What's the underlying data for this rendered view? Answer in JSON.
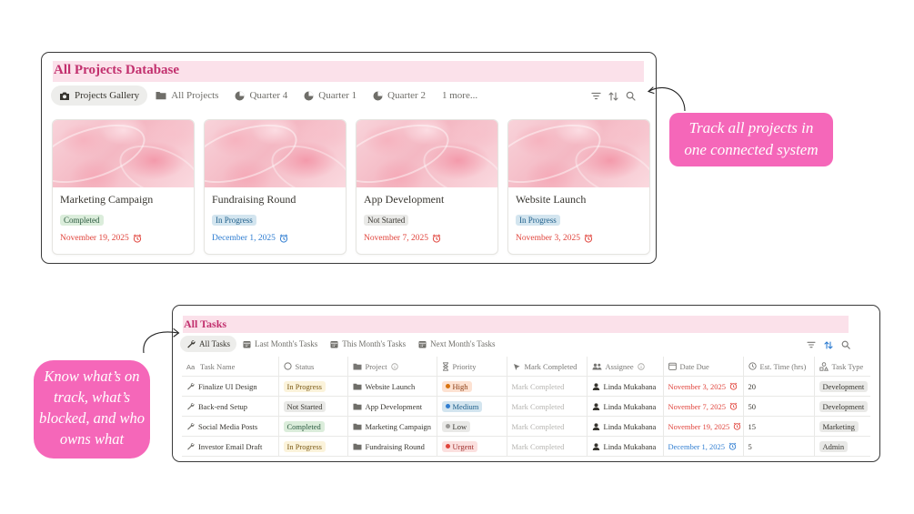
{
  "colors": {
    "brand_pink": "#c2306e",
    "title_bg": "#fbe1ea",
    "callout_bg": "#f567b9",
    "date_red": "#e0433b",
    "date_blue": "#2f7dd1",
    "status_completed_bg": "#dbeddb",
    "status_inprogress_bg": "#d3e5ef",
    "status_notstarted_bg": "#e9e9e7",
    "status_yellow_bg": "#fbf3db"
  },
  "projects": {
    "title": "All Projects Database",
    "tabs": [
      {
        "label": "Projects Gallery",
        "icon": "camera-icon"
      },
      {
        "label": "All Projects",
        "icon": "folder-icon"
      },
      {
        "label": "Quarter 4",
        "icon": "pie-chart-icon"
      },
      {
        "label": "Quarter 1",
        "icon": "pie-chart-icon"
      },
      {
        "label": "Quarter 2",
        "icon": "pie-chart-icon"
      },
      {
        "label": "1 more...",
        "icon": ""
      }
    ],
    "tools": [
      "filter-icon",
      "sort-icon",
      "search-icon"
    ],
    "cards": [
      {
        "title": "Marketing Campaign",
        "status": "Completed",
        "date": "November 19, 2025"
      },
      {
        "title": "Fundraising Round",
        "status": "In Progress",
        "date": "December 1, 2025"
      },
      {
        "title": "App Development",
        "status": "Not Started",
        "date": "November 7, 2025"
      },
      {
        "title": "Website Launch",
        "status": "In Progress",
        "date": "November 3, 2025"
      }
    ]
  },
  "callouts": {
    "projects": [
      "Track all projects in",
      "one connected system"
    ],
    "tasks": [
      "Know what’s on",
      "track, what’s",
      "blocked, and who",
      "owns what"
    ]
  },
  "tasks": {
    "title": "All Tasks",
    "tabs": [
      {
        "label": "All Tasks",
        "icon": "wrench-icon"
      },
      {
        "label": "Last Month's Tasks",
        "icon": "calendar-icon"
      },
      {
        "label": "This Month's Tasks",
        "icon": "calendar-icon"
      },
      {
        "label": "Next Month's Tasks",
        "icon": "calendar-icon"
      }
    ],
    "tools": [
      "filter-icon",
      "sort-icon",
      "search-icon"
    ],
    "columns": [
      "Task Name",
      "Status",
      "Project",
      "Priority",
      "Mark Completed",
      "Assignee",
      "Date Due",
      "Est. Time (hrs)",
      "Task Type"
    ],
    "rows": [
      {
        "name": "Finalize UI Design",
        "status": "In Progress",
        "project": "Website Launch",
        "priority": "High",
        "mark": "Mark Completed",
        "assignee": "Linda Mukabana",
        "due": "November 3, 2025",
        "est": "20",
        "type": "Development"
      },
      {
        "name": "Back-end Setup",
        "status": "Not Started",
        "project": "App Development",
        "priority": "Medium",
        "mark": "Mark Completed",
        "assignee": "Linda Mukabana",
        "due": "November 7, 2025",
        "est": "50",
        "type": "Development"
      },
      {
        "name": "Social Media Posts",
        "status": "Completed",
        "project": "Marketing Campaign",
        "priority": "Low",
        "mark": "Mark Completed",
        "assignee": "Linda Mukabana",
        "due": "November 19, 2025",
        "est": "15",
        "type": "Marketing"
      },
      {
        "name": "Investor Email Draft",
        "status": "In Progress",
        "project": "Fundraising Round",
        "priority": "Urgent",
        "mark": "Mark Completed",
        "assignee": "Linda Mukabana",
        "due": "December 1, 2025",
        "est": "5",
        "type": "Admin"
      }
    ]
  }
}
